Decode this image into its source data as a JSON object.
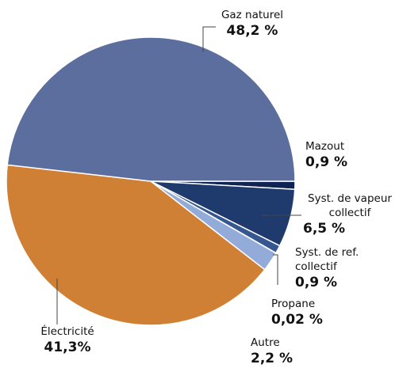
{
  "chart_data": {
    "type": "pie",
    "categories": [
      "Mazout",
      "Syst. de vapeur collectif",
      "Syst. de ref. collectif",
      "Propane",
      "Autre",
      "Électricité",
      "Gaz naturel"
    ],
    "values": [
      0.9,
      6.5,
      0.9,
      0.02,
      2.2,
      41.3,
      48.2
    ],
    "value_labels": [
      "0,9 %",
      "6,5 %",
      "0,9 %",
      "0,02 %",
      "2,2 %",
      "41,3%",
      "48,2 %"
    ],
    "colors": [
      "#0f2452",
      "#1f3b6e",
      "#35568f",
      "#5d7cb8",
      "#93abd8",
      "#d08035",
      "#5b6e9e"
    ]
  }
}
